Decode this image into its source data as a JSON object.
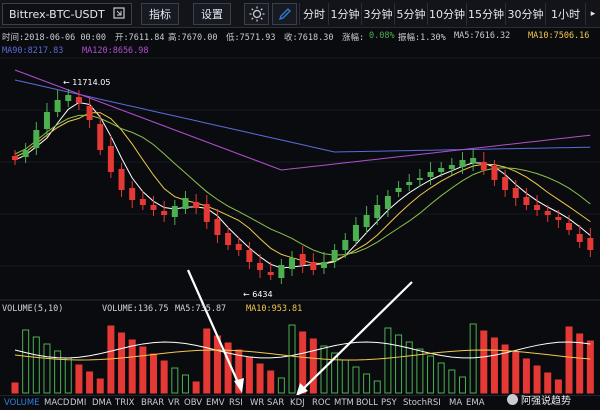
{
  "toolbar": {
    "symbol": "Bittrex-BTC-USDT",
    "indicator_btn": "指标",
    "settings_btn": "设置",
    "timeframes": [
      "分时",
      "1分钟",
      "3分钟",
      "5分钟",
      "10分钟",
      "15分钟",
      "30分钟",
      "1小时"
    ]
  },
  "info": {
    "time": "时间:2018-06-06 00:00",
    "open": "开:7611.84",
    "high": "高:7670.00",
    "low": "低:7571.93",
    "close": "收:7618.30",
    "change_label": "涨幅:",
    "change_value": "0.08%",
    "amp": "振幅:1.30%",
    "ma5": "MA5:7616.32",
    "ma10": "MA10:7506.16"
  },
  "ma_long": {
    "ma90": "MA90:8217.83",
    "ma120": "MA120:8656.98"
  },
  "annotations": {
    "high": "← 11714.05",
    "low": "← 6434"
  },
  "volume": {
    "title": "VOLUME(5,10)",
    "value": "VOLUME:136.75",
    "ma5": "MA5:735.87",
    "ma10": "MA10:953.81"
  },
  "indicator_tabs": [
    "VOLUME",
    "MACD",
    "DMI",
    "DMA",
    "TRIX",
    "BRAR",
    "VR",
    "OBV",
    "EMV",
    "RSI",
    "WR",
    "SAR",
    "KDJ",
    "ROC",
    "MTM",
    "BOLL",
    "PSY",
    "StochRSI",
    "MA",
    "EMA"
  ],
  "watermark": "阿强说趋势",
  "colors": {
    "up": "#4caf50",
    "down": "#e53935",
    "ma5": "#ffffff",
    "ma10": "#f2c94c",
    "ma90": "#5b6cd8",
    "ma120": "#b04fd0",
    "ma_extra": "#8bc34a",
    "accent": "#2f7fdc"
  }
}
